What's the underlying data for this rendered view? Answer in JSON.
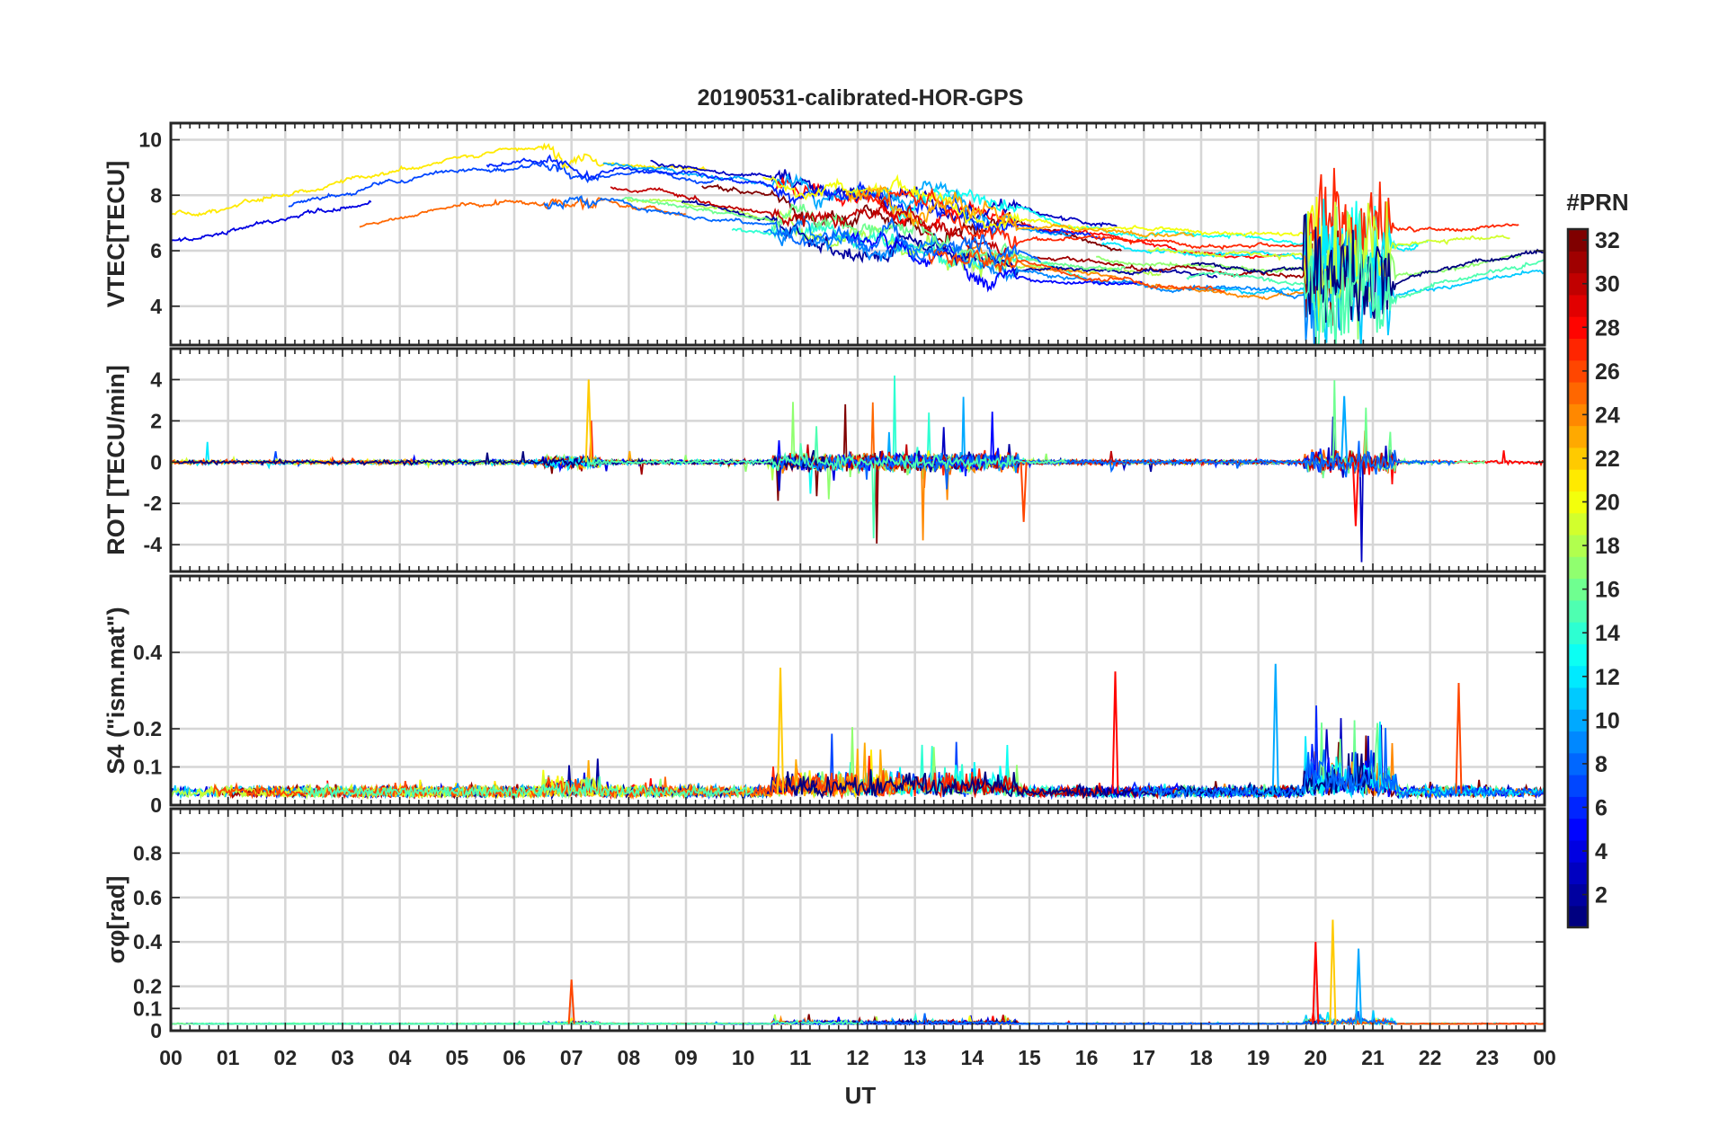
{
  "title": "20190531-calibrated-HOR-GPS",
  "x_axis": {
    "label": "UT",
    "tick_labels": [
      "00",
      "01",
      "02",
      "03",
      "04",
      "05",
      "06",
      "07",
      "08",
      "09",
      "10",
      "11",
      "12",
      "13",
      "14",
      "15",
      "16",
      "17",
      "18",
      "19",
      "20",
      "21",
      "22",
      "23",
      "00"
    ]
  },
  "colorbar": {
    "title": "#PRN",
    "range": [
      1,
      32
    ],
    "tick_labels": [
      "2",
      "4",
      "6",
      "8",
      "10",
      "12",
      "14",
      "16",
      "18",
      "20",
      "22",
      "24",
      "26",
      "28",
      "30",
      "32"
    ],
    "colormap": "jet"
  },
  "chart_data": [
    {
      "type": "line",
      "ylabel": "VTEC[TECU]",
      "ylim": [
        2.6,
        10.6
      ],
      "yticks": [
        4,
        6,
        8,
        10
      ],
      "ytick_labels": [
        "4",
        "6",
        "8",
        "10"
      ],
      "x_unit": "hours UT",
      "xlim": [
        0,
        24
      ],
      "series_note": "one trace per GPS PRN, colored by PRN",
      "features": [
        {
          "x": [
            0,
            24
          ],
          "y_range": [
            5,
            9
          ],
          "description": "diurnal VTEC variation"
        },
        {
          "x": [
            19.8,
            21.3
          ],
          "y_range": [
            2.7,
            9.5
          ],
          "description": "strong fluctuations"
        }
      ],
      "grid": true
    },
    {
      "type": "line",
      "ylabel": "ROT [TECU/min]",
      "ylim": [
        -5.3,
        5.5
      ],
      "yticks": [
        -4,
        -2,
        0,
        2,
        4
      ],
      "ytick_labels": [
        "-4",
        "-2",
        "0",
        "2",
        "4"
      ],
      "xlim": [
        0,
        24
      ],
      "peaks": [
        {
          "x": 7.3,
          "y": 4.0
        },
        {
          "x": 20.5,
          "y": 3.2
        },
        {
          "x": 20.7,
          "y": -3.1
        },
        {
          "x": 14.9,
          "y": -2.9
        }
      ],
      "grid": true
    },
    {
      "type": "line",
      "ylabel": "S4 (\"ism.mat\")",
      "ylim": [
        0,
        0.6
      ],
      "yticks": [
        0,
        0.1,
        0.2,
        0.4
      ],
      "ytick_labels": [
        "0",
        "0.1",
        "0.2",
        "0.4"
      ],
      "xlim": [
        0,
        24
      ],
      "peaks": [
        {
          "x": 10.65,
          "y": 0.36
        },
        {
          "x": 19.3,
          "y": 0.37
        },
        {
          "x": 16.5,
          "y": 0.35
        },
        {
          "x": 22.5,
          "y": 0.32
        }
      ],
      "grid": true
    },
    {
      "type": "line",
      "ylabel": "σφ[rad]",
      "ylim": [
        0,
        1.0
      ],
      "yticks": [
        0,
        0.1,
        0.2,
        0.4,
        0.6,
        0.8
      ],
      "ytick_labels": [
        "0",
        "0.1",
        "0.2",
        "0.4",
        "0.6",
        "0.8"
      ],
      "xlim": [
        0,
        24
      ],
      "peaks": [
        {
          "x": 20.3,
          "y": 0.5
        },
        {
          "x": 20.75,
          "y": 0.37
        },
        {
          "x": 20.0,
          "y": 0.4
        },
        {
          "x": 7.0,
          "y": 0.23
        }
      ],
      "grid": true
    }
  ]
}
